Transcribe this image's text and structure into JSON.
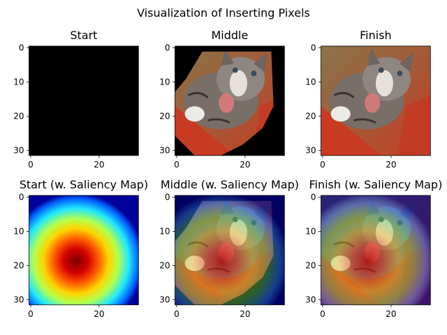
{
  "chart_data": {
    "type": "image-grid",
    "title": "Visualization of Inserting Pixels",
    "panels": [
      {
        "title": "Start",
        "content": "black",
        "xticks": [
          "0",
          "20"
        ],
        "yticks": [
          "0",
          "10",
          "20",
          "30"
        ]
      },
      {
        "title": "Middle",
        "content": "partial-cat",
        "xticks": [
          "0",
          "20"
        ],
        "yticks": [
          "0",
          "10",
          "20",
          "30"
        ]
      },
      {
        "title": "Finish",
        "content": "cat",
        "xticks": [
          "0",
          "20"
        ],
        "yticks": [
          "0",
          "10",
          "20",
          "30"
        ]
      },
      {
        "title": "Start (w. Saliency Map)",
        "content": "saliency",
        "xticks": [
          "0",
          "20"
        ],
        "yticks": [
          "0",
          "10",
          "20",
          "30"
        ]
      },
      {
        "title": "Middle (w. Saliency Map)",
        "content": "partial-cat-saliency",
        "xticks": [
          "0",
          "20"
        ],
        "yticks": [
          "0",
          "10",
          "20",
          "30"
        ]
      },
      {
        "title": "Finish (w. Saliency Map)",
        "content": "cat-saliency",
        "xticks": [
          "0",
          "20"
        ],
        "yticks": [
          "0",
          "10",
          "20",
          "30"
        ]
      }
    ],
    "image_size": [
      32,
      32
    ],
    "colormap": "jet",
    "colors": {
      "background_cat": "#c44a2e",
      "cat_fur": "#7d726b",
      "black": "#000000"
    }
  }
}
